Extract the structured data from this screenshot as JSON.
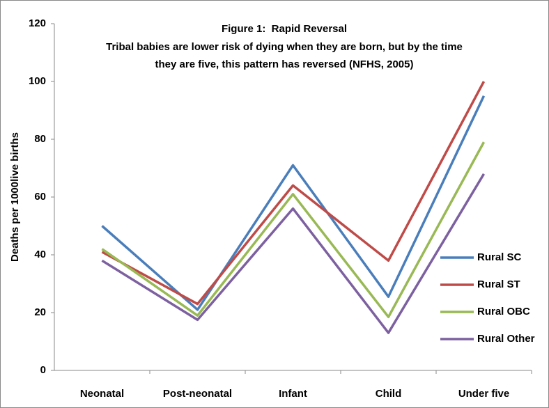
{
  "chart_data": {
    "type": "line",
    "title": "Figure 1:  Rapid Reversal",
    "subtitle": [
      "Tribal babies are lower risk of dying when they are born, but by the time",
      "they are five, this pattern has reversed (NFHS, 2005)"
    ],
    "y_label": "Deaths per 1000live births",
    "categories": [
      "Neonatal",
      "Post-neonatal",
      "Infant",
      "Child",
      "Under five"
    ],
    "series": [
      {
        "name": "Rural SC",
        "color": "#4a7ebb",
        "values": [
          50,
          21,
          71,
          25.5,
          95
        ]
      },
      {
        "name": "Rural ST",
        "color": "#be4b48",
        "values": [
          41,
          23,
          64,
          38,
          100
        ]
      },
      {
        "name": "Rural OBC",
        "color": "#98b954",
        "values": [
          42,
          19,
          61,
          18.5,
          79
        ]
      },
      {
        "name": "Rural Other",
        "color": "#7d60a0",
        "values": [
          38,
          17.5,
          56,
          13,
          68
        ]
      }
    ],
    "ylim": [
      0,
      120
    ],
    "yticks": [
      0,
      20,
      40,
      60,
      80,
      100,
      120
    ],
    "grid": false,
    "legend": "right"
  }
}
